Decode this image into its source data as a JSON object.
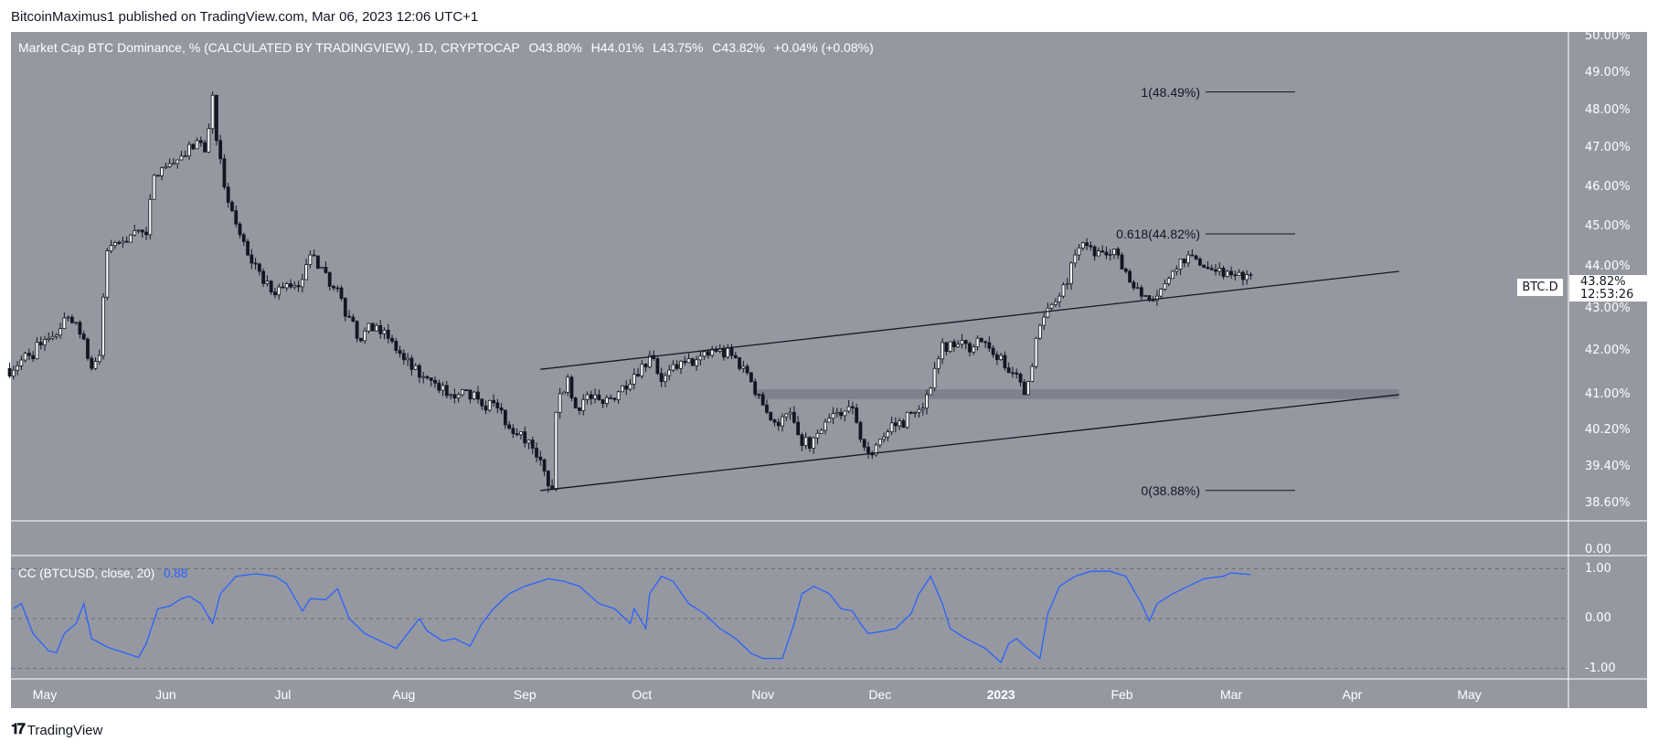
{
  "header": {
    "published": "BitcoinMaximus1 published on TradingView.com, Mar 06, 2023 12:06 UTC+1"
  },
  "legend": {
    "title": "Market Cap BTC Dominance, % (CALCULATED BY TRADINGVIEW), 1D, CRYPTOCAP",
    "open": "O43.80%",
    "high": "H44.01%",
    "low": "L43.75%",
    "close": "C43.82%",
    "change": "+0.04% (+0.08%)"
  },
  "symbol_tag": "BTC.D",
  "last_price": {
    "value": "43.82%",
    "countdown": "12:53:26"
  },
  "price_axis": {
    "scale": "log",
    "ticks": [
      "50.00%",
      "49.00%",
      "48.00%",
      "47.00%",
      "46.00%",
      "45.00%",
      "44.00%",
      "43.00%",
      "42.00%",
      "41.00%",
      "40.20%",
      "39.40%",
      "38.60%"
    ]
  },
  "empty_pane_tick": "0.00",
  "time_axis": [
    {
      "label": "May",
      "date": "2022-05-01"
    },
    {
      "label": "Jun",
      "date": "2022-06-01"
    },
    {
      "label": "Jul",
      "date": "2022-07-01"
    },
    {
      "label": "Aug",
      "date": "2022-08-01"
    },
    {
      "label": "Sep",
      "date": "2022-09-01"
    },
    {
      "label": "Oct",
      "date": "2022-10-01"
    },
    {
      "label": "Nov",
      "date": "2022-11-01"
    },
    {
      "label": "Dec",
      "date": "2022-12-01"
    },
    {
      "label": "2023",
      "date": "2023-01-01",
      "bold": true
    },
    {
      "label": "Feb",
      "date": "2023-02-01"
    },
    {
      "label": "Mar",
      "date": "2023-03-01"
    },
    {
      "label": "Apr",
      "date": "2023-04-01"
    },
    {
      "label": "May",
      "date": "2023-05-01"
    }
  ],
  "fib_levels": [
    {
      "label": "1(48.49%)",
      "value": 48.49
    },
    {
      "label": "0.618(44.82%)",
      "value": 44.82
    },
    {
      "label": "0(38.88%)",
      "value": 38.88
    }
  ],
  "chart_data": {
    "type": "candlestick",
    "series_name": "BTC.D",
    "colors": {
      "background": "#9598a1",
      "up": "#ffffff",
      "down": "#131722",
      "cc_line": "#2962ff"
    },
    "close_anchors": [
      [
        "2022-04-22",
        41.6
      ],
      [
        "2022-04-27",
        41.9
      ],
      [
        "2022-05-02",
        42.3
      ],
      [
        "2022-05-07",
        42.8
      ],
      [
        "2022-05-10",
        42.4
      ],
      [
        "2022-05-13",
        41.6
      ],
      [
        "2022-05-15",
        41.9
      ],
      [
        "2022-05-17",
        44.4
      ],
      [
        "2022-05-20",
        44.6
      ],
      [
        "2022-05-24",
        44.9
      ],
      [
        "2022-05-27",
        44.8
      ],
      [
        "2022-05-29",
        46.3
      ],
      [
        "2022-06-02",
        46.6
      ],
      [
        "2022-06-06",
        46.8
      ],
      [
        "2022-06-09",
        47.2
      ],
      [
        "2022-06-11",
        46.9
      ],
      [
        "2022-06-13",
        48.4
      ],
      [
        "2022-06-14",
        47.2
      ],
      [
        "2022-06-16",
        46.0
      ],
      [
        "2022-06-18",
        45.4
      ],
      [
        "2022-06-20",
        44.8
      ],
      [
        "2022-06-22",
        44.3
      ],
      [
        "2022-06-25",
        43.9
      ],
      [
        "2022-06-28",
        43.4
      ],
      [
        "2022-07-02",
        43.6
      ],
      [
        "2022-07-06",
        43.7
      ],
      [
        "2022-07-08",
        44.3
      ],
      [
        "2022-07-11",
        44.0
      ],
      [
        "2022-07-14",
        43.5
      ],
      [
        "2022-07-18",
        42.8
      ],
      [
        "2022-07-20",
        42.3
      ],
      [
        "2022-07-25",
        42.6
      ],
      [
        "2022-07-28",
        42.3
      ],
      [
        "2022-08-01",
        41.8
      ],
      [
        "2022-08-05",
        41.4
      ],
      [
        "2022-08-10",
        41.1
      ],
      [
        "2022-08-15",
        41.0
      ],
      [
        "2022-08-20",
        40.9
      ],
      [
        "2022-08-25",
        40.7
      ],
      [
        "2022-08-30",
        40.1
      ],
      [
        "2022-09-03",
        39.8
      ],
      [
        "2022-09-06",
        39.3
      ],
      [
        "2022-09-08",
        38.9
      ],
      [
        "2022-09-09",
        40.6
      ],
      [
        "2022-09-12",
        41.4
      ],
      [
        "2022-09-14",
        40.7
      ],
      [
        "2022-09-17",
        41.0
      ],
      [
        "2022-09-21",
        40.8
      ],
      [
        "2022-09-26",
        41.2
      ],
      [
        "2022-10-01",
        41.7
      ],
      [
        "2022-10-03",
        41.9
      ],
      [
        "2022-10-06",
        41.3
      ],
      [
        "2022-10-10",
        41.6
      ],
      [
        "2022-10-15",
        41.8
      ],
      [
        "2022-10-20",
        42.0
      ],
      [
        "2022-10-24",
        41.9
      ],
      [
        "2022-10-28",
        41.5
      ],
      [
        "2022-10-31",
        41.0
      ],
      [
        "2022-11-02",
        40.6
      ],
      [
        "2022-11-05",
        40.3
      ],
      [
        "2022-11-08",
        40.6
      ],
      [
        "2022-11-10",
        40.1
      ],
      [
        "2022-11-13",
        39.8
      ],
      [
        "2022-11-16",
        40.2
      ],
      [
        "2022-11-20",
        40.6
      ],
      [
        "2022-11-24",
        40.7
      ],
      [
        "2022-11-26",
        40.0
      ],
      [
        "2022-11-28",
        39.7
      ],
      [
        "2022-12-01",
        40.0
      ],
      [
        "2022-12-05",
        40.3
      ],
      [
        "2022-12-10",
        40.6
      ],
      [
        "2022-12-13",
        41.0
      ],
      [
        "2022-12-15",
        41.6
      ],
      [
        "2022-12-17",
        42.2
      ],
      [
        "2022-12-20",
        42.1
      ],
      [
        "2022-12-25",
        42.1
      ],
      [
        "2022-12-28",
        42.2
      ],
      [
        "2023-01-01",
        41.9
      ],
      [
        "2023-01-04",
        41.5
      ],
      [
        "2023-01-07",
        41.0
      ],
      [
        "2023-01-08",
        41.3
      ],
      [
        "2023-01-10",
        42.3
      ],
      [
        "2023-01-12",
        42.8
      ],
      [
        "2023-01-14",
        43.1
      ],
      [
        "2023-01-16",
        43.3
      ],
      [
        "2023-01-18",
        43.6
      ],
      [
        "2023-01-20",
        44.3
      ],
      [
        "2023-01-22",
        44.6
      ],
      [
        "2023-01-24",
        44.5
      ],
      [
        "2023-01-26",
        44.4
      ],
      [
        "2023-01-28",
        44.3
      ],
      [
        "2023-01-31",
        44.3
      ],
      [
        "2023-02-02",
        43.9
      ],
      [
        "2023-02-04",
        43.5
      ],
      [
        "2023-02-06",
        43.3
      ],
      [
        "2023-02-09",
        43.2
      ],
      [
        "2023-02-10",
        43.3
      ],
      [
        "2023-02-12",
        43.6
      ],
      [
        "2023-02-14",
        43.9
      ],
      [
        "2023-02-16",
        44.2
      ],
      [
        "2023-02-18",
        44.3
      ],
      [
        "2023-02-20",
        44.2
      ],
      [
        "2023-02-22",
        44.0
      ],
      [
        "2023-02-25",
        43.9
      ],
      [
        "2023-02-28",
        43.9
      ],
      [
        "2023-03-02",
        43.8
      ],
      [
        "2023-03-04",
        43.7
      ],
      [
        "2023-03-06",
        43.82
      ]
    ],
    "trendlines": [
      {
        "name": "channel-upper",
        "from": [
          "2022-09-05",
          41.58
        ],
        "to": [
          "2023-04-13",
          43.9
        ]
      },
      {
        "name": "channel-lower",
        "from": [
          "2022-09-05",
          38.88
        ],
        "to": [
          "2023-04-13",
          41.0
        ]
      }
    ],
    "support_zone": {
      "from": "2022-10-30",
      "to": "2023-04-13",
      "low": 40.9,
      "high": 41.12
    },
    "indicator": {
      "label": "CC (BTCUSD, close, 20)",
      "last_value": "0.88",
      "ticks": [
        "1.00",
        "0.00",
        "-1.00"
      ],
      "ylim": [
        -1,
        1
      ],
      "points": [
        [
          "2022-04-23",
          0.2
        ],
        [
          "2022-04-25",
          0.3
        ],
        [
          "2022-04-28",
          -0.3
        ],
        [
          "2022-05-02",
          -0.65
        ],
        [
          "2022-05-04",
          -0.68
        ],
        [
          "2022-05-06",
          -0.3
        ],
        [
          "2022-05-09",
          -0.1
        ],
        [
          "2022-05-11",
          0.3
        ],
        [
          "2022-05-13",
          -0.4
        ],
        [
          "2022-05-17",
          -0.57
        ],
        [
          "2022-05-25",
          -0.78
        ],
        [
          "2022-05-27",
          -0.5
        ],
        [
          "2022-05-30",
          0.2
        ],
        [
          "2022-06-02",
          0.25
        ],
        [
          "2022-06-05",
          0.4
        ],
        [
          "2022-06-07",
          0.45
        ],
        [
          "2022-06-10",
          0.3
        ],
        [
          "2022-06-13",
          -0.1
        ],
        [
          "2022-06-15",
          0.5
        ],
        [
          "2022-06-19",
          0.85
        ],
        [
          "2022-06-24",
          0.9
        ],
        [
          "2022-06-29",
          0.85
        ],
        [
          "2022-07-02",
          0.7
        ],
        [
          "2022-07-06",
          0.15
        ],
        [
          "2022-07-08",
          0.4
        ],
        [
          "2022-07-12",
          0.38
        ],
        [
          "2022-07-15",
          0.6
        ],
        [
          "2022-07-18",
          0.0
        ],
        [
          "2022-07-22",
          -0.3
        ],
        [
          "2022-07-26",
          -0.45
        ],
        [
          "2022-07-30",
          -0.6
        ],
        [
          "2022-08-02",
          -0.3
        ],
        [
          "2022-08-05",
          0.0
        ],
        [
          "2022-08-07",
          -0.25
        ],
        [
          "2022-08-11",
          -0.45
        ],
        [
          "2022-08-14",
          -0.4
        ],
        [
          "2022-08-18",
          -0.55
        ],
        [
          "2022-08-21",
          -0.1
        ],
        [
          "2022-08-24",
          0.2
        ],
        [
          "2022-08-28",
          0.5
        ],
        [
          "2022-09-01",
          0.65
        ],
        [
          "2022-09-05",
          0.75
        ],
        [
          "2022-09-07",
          0.8
        ],
        [
          "2022-09-11",
          0.75
        ],
        [
          "2022-09-15",
          0.65
        ],
        [
          "2022-09-20",
          0.3
        ],
        [
          "2022-09-24",
          0.2
        ],
        [
          "2022-09-28",
          -0.1
        ],
        [
          "2022-09-29",
          0.2
        ],
        [
          "2022-10-02",
          -0.2
        ],
        [
          "2022-10-03",
          0.5
        ],
        [
          "2022-10-06",
          0.85
        ],
        [
          "2022-10-09",
          0.75
        ],
        [
          "2022-10-13",
          0.3
        ],
        [
          "2022-10-17",
          0.1
        ],
        [
          "2022-10-21",
          -0.2
        ],
        [
          "2022-10-25",
          -0.4
        ],
        [
          "2022-10-29",
          -0.7
        ],
        [
          "2022-11-01",
          -0.8
        ],
        [
          "2022-11-06",
          -0.8
        ],
        [
          "2022-11-09",
          -0.1
        ],
        [
          "2022-11-11",
          0.5
        ],
        [
          "2022-11-14",
          0.65
        ],
        [
          "2022-11-18",
          0.5
        ],
        [
          "2022-11-21",
          0.2
        ],
        [
          "2022-11-24",
          0.15
        ],
        [
          "2022-11-26",
          -0.1
        ],
        [
          "2022-11-28",
          -0.3
        ],
        [
          "2022-12-02",
          -0.25
        ],
        [
          "2022-12-05",
          -0.2
        ],
        [
          "2022-12-09",
          0.1
        ],
        [
          "2022-12-11",
          0.5
        ],
        [
          "2022-12-14",
          0.85
        ],
        [
          "2022-12-17",
          0.3
        ],
        [
          "2022-12-19",
          -0.2
        ],
        [
          "2022-12-23",
          -0.4
        ],
        [
          "2022-12-28",
          -0.6
        ],
        [
          "2023-01-01",
          -0.88
        ],
        [
          "2023-01-03",
          -0.5
        ],
        [
          "2023-01-05",
          -0.4
        ],
        [
          "2023-01-07",
          -0.55
        ],
        [
          "2023-01-11",
          -0.8
        ],
        [
          "2023-01-13",
          0.1
        ],
        [
          "2023-01-16",
          0.65
        ],
        [
          "2023-01-20",
          0.85
        ],
        [
          "2023-01-24",
          0.95
        ],
        [
          "2023-01-29",
          0.95
        ],
        [
          "2023-02-02",
          0.85
        ],
        [
          "2023-02-06",
          0.3
        ],
        [
          "2023-02-08",
          -0.05
        ],
        [
          "2023-02-10",
          0.3
        ],
        [
          "2023-02-14",
          0.5
        ],
        [
          "2023-02-18",
          0.65
        ],
        [
          "2023-02-22",
          0.8
        ],
        [
          "2023-02-27",
          0.85
        ],
        [
          "2023-03-01",
          0.92
        ],
        [
          "2023-03-06",
          0.88
        ]
      ]
    }
  },
  "footer": {
    "brand": "TradingView",
    "logo_mark": "TV"
  }
}
